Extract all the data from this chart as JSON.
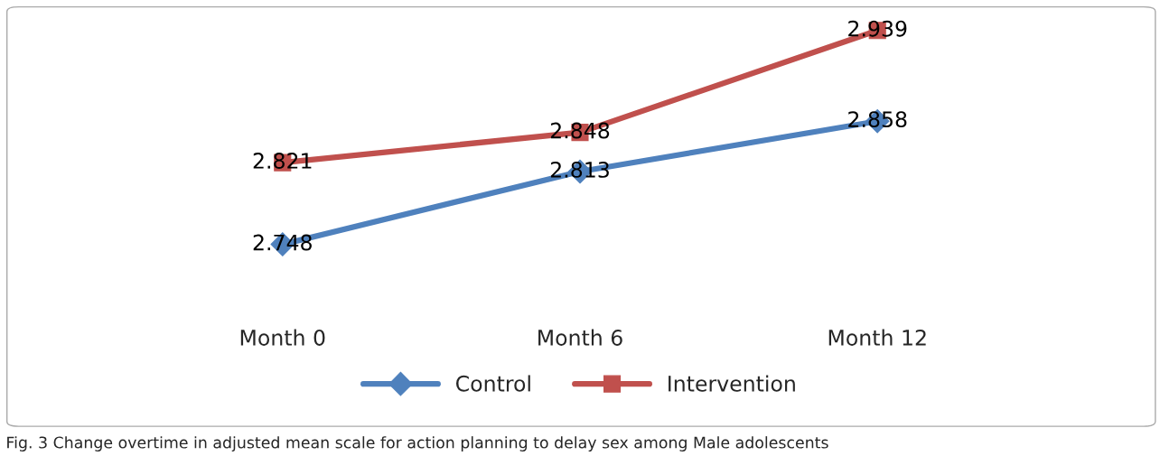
{
  "chart_data": {
    "type": "line",
    "categories": [
      "Month 0",
      "Month 6",
      "Month 12"
    ],
    "series": [
      {
        "name": "Control",
        "color": "#4f81bd",
        "values": [
          2.748,
          2.813,
          2.858
        ],
        "marker": "diamond"
      },
      {
        "name": "Intervention",
        "color": "#c0504d",
        "values": [
          2.821,
          2.848,
          2.939
        ],
        "marker": "square"
      }
    ],
    "data_labels": true,
    "legend": "bottom",
    "grid": false,
    "tick_labels": "x",
    "annotations": [
      "Fig. 3 Change overtime in adjusted mean scale for action planning to delay sex among Male adolescents"
    ]
  }
}
